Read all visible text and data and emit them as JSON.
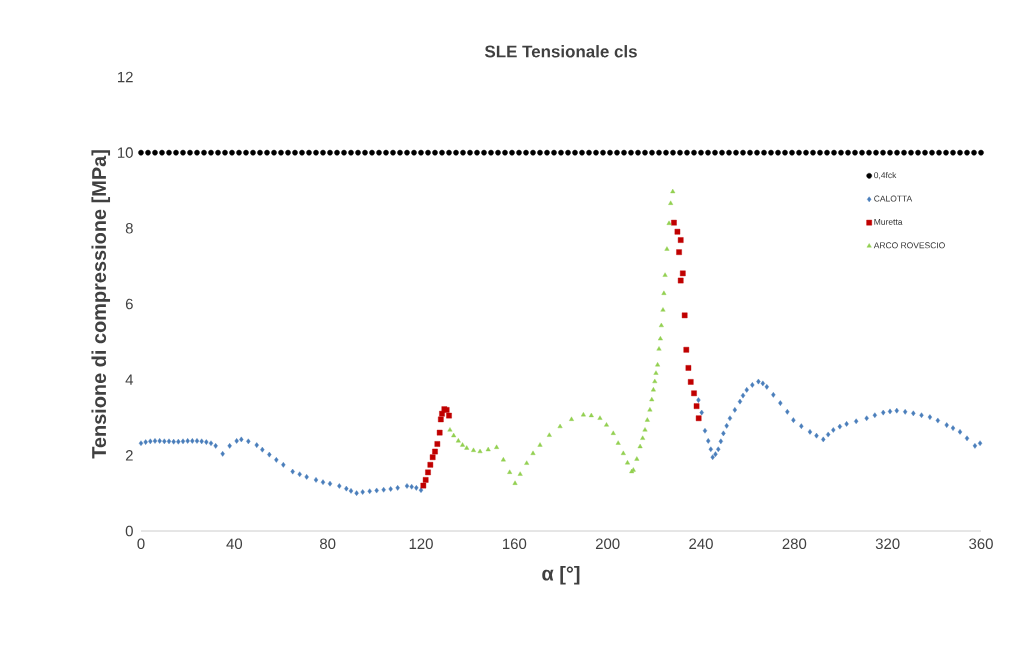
{
  "chart_data": {
    "type": "scatter",
    "title": "SLE Tensionale cls",
    "xlabel": "α [°]",
    "ylabel": "Tensione di compressione [MPa]",
    "xlim": [
      0,
      360
    ],
    "xticks": [
      0,
      40,
      80,
      120,
      160,
      200,
      240,
      280,
      320,
      360
    ],
    "ylim": [
      0,
      12
    ],
    "yticks": [
      0,
      2,
      4,
      6,
      8,
      10,
      12
    ],
    "grid": false,
    "legend": "right",
    "series": [
      {
        "name": "0,4fck",
        "color": "#000000",
        "marker": "circle",
        "x": [
          0,
          3,
          6,
          9,
          12,
          15,
          18,
          21,
          24,
          27,
          30,
          33,
          36,
          39,
          42,
          45,
          48,
          51,
          54,
          57,
          60,
          63,
          66,
          69,
          72,
          75,
          78,
          81,
          84,
          87,
          90,
          93,
          96,
          99,
          102,
          105,
          108,
          111,
          114,
          117,
          120,
          123,
          126,
          129,
          132,
          135,
          138,
          141,
          144,
          147,
          150,
          153,
          156,
          159,
          162,
          165,
          168,
          171,
          174,
          177,
          180,
          183,
          186,
          189,
          192,
          195,
          198,
          201,
          204,
          207,
          210,
          213,
          216,
          219,
          222,
          225,
          228,
          231,
          234,
          237,
          240,
          243,
          246,
          249,
          252,
          255,
          258,
          261,
          264,
          267,
          270,
          273,
          276,
          279,
          282,
          285,
          288,
          291,
          294,
          297,
          300,
          303,
          306,
          309,
          312,
          315,
          318,
          321,
          324,
          327,
          330,
          333,
          336,
          339,
          342,
          345,
          348,
          351,
          354,
          357,
          360
        ],
        "values": [
          10,
          10,
          10,
          10,
          10,
          10,
          10,
          10,
          10,
          10,
          10,
          10,
          10,
          10,
          10,
          10,
          10,
          10,
          10,
          10,
          10,
          10,
          10,
          10,
          10,
          10,
          10,
          10,
          10,
          10,
          10,
          10,
          10,
          10,
          10,
          10,
          10,
          10,
          10,
          10,
          10,
          10,
          10,
          10,
          10,
          10,
          10,
          10,
          10,
          10,
          10,
          10,
          10,
          10,
          10,
          10,
          10,
          10,
          10,
          10,
          10,
          10,
          10,
          10,
          10,
          10,
          10,
          10,
          10,
          10,
          10,
          10,
          10,
          10,
          10,
          10,
          10,
          10,
          10,
          10,
          10,
          10,
          10,
          10,
          10,
          10,
          10,
          10,
          10,
          10,
          10,
          10,
          10,
          10,
          10,
          10,
          10,
          10,
          10,
          10,
          10,
          10,
          10,
          10,
          10,
          10,
          10,
          10,
          10,
          10,
          10,
          10,
          10,
          10,
          10,
          10,
          10,
          10,
          10,
          10,
          10
        ]
      },
      {
        "name": "CALOTTA",
        "color": "#4a7ebb",
        "marker": "diamond",
        "x": [
          0,
          2,
          4,
          6,
          8,
          10,
          12,
          14,
          16,
          18,
          20,
          22,
          24,
          26,
          28,
          30,
          32,
          35,
          38,
          41,
          43,
          46,
          49.6,
          52,
          55,
          58,
          61,
          65,
          68,
          71,
          75,
          78,
          81,
          85,
          88,
          90,
          92.4,
          95,
          98,
          101,
          104,
          107,
          110,
          114,
          116,
          118,
          120,
          238.9,
          240.3,
          241.7,
          243.1,
          244.2,
          245,
          246.2,
          247.4,
          248.5,
          249.6,
          251,
          252.4,
          254.5,
          256.7,
          258,
          259.6,
          262,
          264.6,
          266.5,
          268.2,
          271,
          274,
          277,
          279.6,
          283,
          286.7,
          289.5,
          292.4,
          294.5,
          296.7,
          299.5,
          302.4,
          306.5,
          311,
          314.5,
          318.1,
          321,
          323.9,
          327.5,
          331,
          334.5,
          338.1,
          341.5,
          345.3,
          348,
          351,
          354,
          357.4,
          359.6
        ],
        "values": [
          2.32,
          2.35,
          2.37,
          2.38,
          2.38,
          2.37,
          2.37,
          2.36,
          2.36,
          2.37,
          2.38,
          2.38,
          2.38,
          2.37,
          2.35,
          2.32,
          2.25,
          2.04,
          2.25,
          2.38,
          2.42,
          2.37,
          2.27,
          2.15,
          2.02,
          1.88,
          1.75,
          1.57,
          1.5,
          1.43,
          1.35,
          1.29,
          1.25,
          1.19,
          1.12,
          1.06,
          1.0,
          1.03,
          1.05,
          1.07,
          1.09,
          1.11,
          1.14,
          1.19,
          1.17,
          1.14,
          1.08,
          3.46,
          3.13,
          2.65,
          2.38,
          2.16,
          1.95,
          2.03,
          2.16,
          2.37,
          2.58,
          2.78,
          2.98,
          3.2,
          3.42,
          3.58,
          3.73,
          3.86,
          3.95,
          3.9,
          3.81,
          3.6,
          3.38,
          3.15,
          2.93,
          2.77,
          2.62,
          2.52,
          2.42,
          2.55,
          2.67,
          2.76,
          2.83,
          2.9,
          2.98,
          3.06,
          3.13,
          3.16,
          3.18,
          3.15,
          3.11,
          3.06,
          3.01,
          2.92,
          2.8,
          2.72,
          2.62,
          2.45,
          2.25,
          2.32
        ]
      },
      {
        "name": "Muretta",
        "color": "#c00000",
        "marker": "square",
        "x": [
          121,
          122,
          123,
          124,
          125,
          126,
          127,
          128,
          128.5,
          129,
          130,
          131,
          132,
          228.4,
          229.9,
          231.3,
          230.6,
          232.2,
          231.3,
          233,
          233.7,
          234.6,
          235.6,
          237,
          238.1,
          239
        ],
        "values": [
          1.2,
          1.35,
          1.55,
          1.75,
          1.95,
          2.1,
          2.3,
          2.6,
          2.95,
          3.1,
          3.22,
          3.2,
          3.05,
          8.15,
          7.91,
          7.69,
          7.37,
          6.81,
          6.62,
          5.7,
          4.79,
          4.31,
          3.94,
          3.64,
          3.3,
          2.98
        ]
      },
      {
        "name": "ARCO ROVESCIO",
        "color": "#92d050",
        "marker": "triangle",
        "x": [
          132.4,
          134,
          136,
          137.8,
          139.6,
          142.5,
          145.3,
          148.8,
          152.4,
          155.3,
          158,
          160.3,
          162.5,
          165.3,
          168,
          171,
          175,
          179.6,
          184.5,
          189.6,
          193,
          196.7,
          199.5,
          202.4,
          204.5,
          206.7,
          208.5,
          210.3,
          211,
          212.5,
          213.9,
          215,
          216,
          217,
          218.1,
          218.9,
          219.6,
          220.2,
          220.7,
          221.4,
          222,
          222.6,
          223,
          223.7,
          224.1,
          224.6,
          225.4,
          226.3,
          227,
          227.9
        ],
        "values": [
          2.67,
          2.52,
          2.38,
          2.27,
          2.19,
          2.13,
          2.1,
          2.15,
          2.21,
          1.88,
          1.55,
          1.26,
          1.5,
          1.79,
          2.05,
          2.27,
          2.53,
          2.76,
          2.95,
          3.07,
          3.05,
          2.98,
          2.8,
          2.58,
          2.32,
          2.05,
          1.8,
          1.57,
          1.61,
          1.9,
          2.23,
          2.45,
          2.67,
          2.93,
          3.2,
          3.47,
          3.73,
          3.95,
          4.17,
          4.39,
          4.81,
          5.08,
          5.43,
          5.84,
          6.28,
          6.76,
          7.45,
          8.13,
          8.66,
          8.97
        ]
      }
    ]
  }
}
